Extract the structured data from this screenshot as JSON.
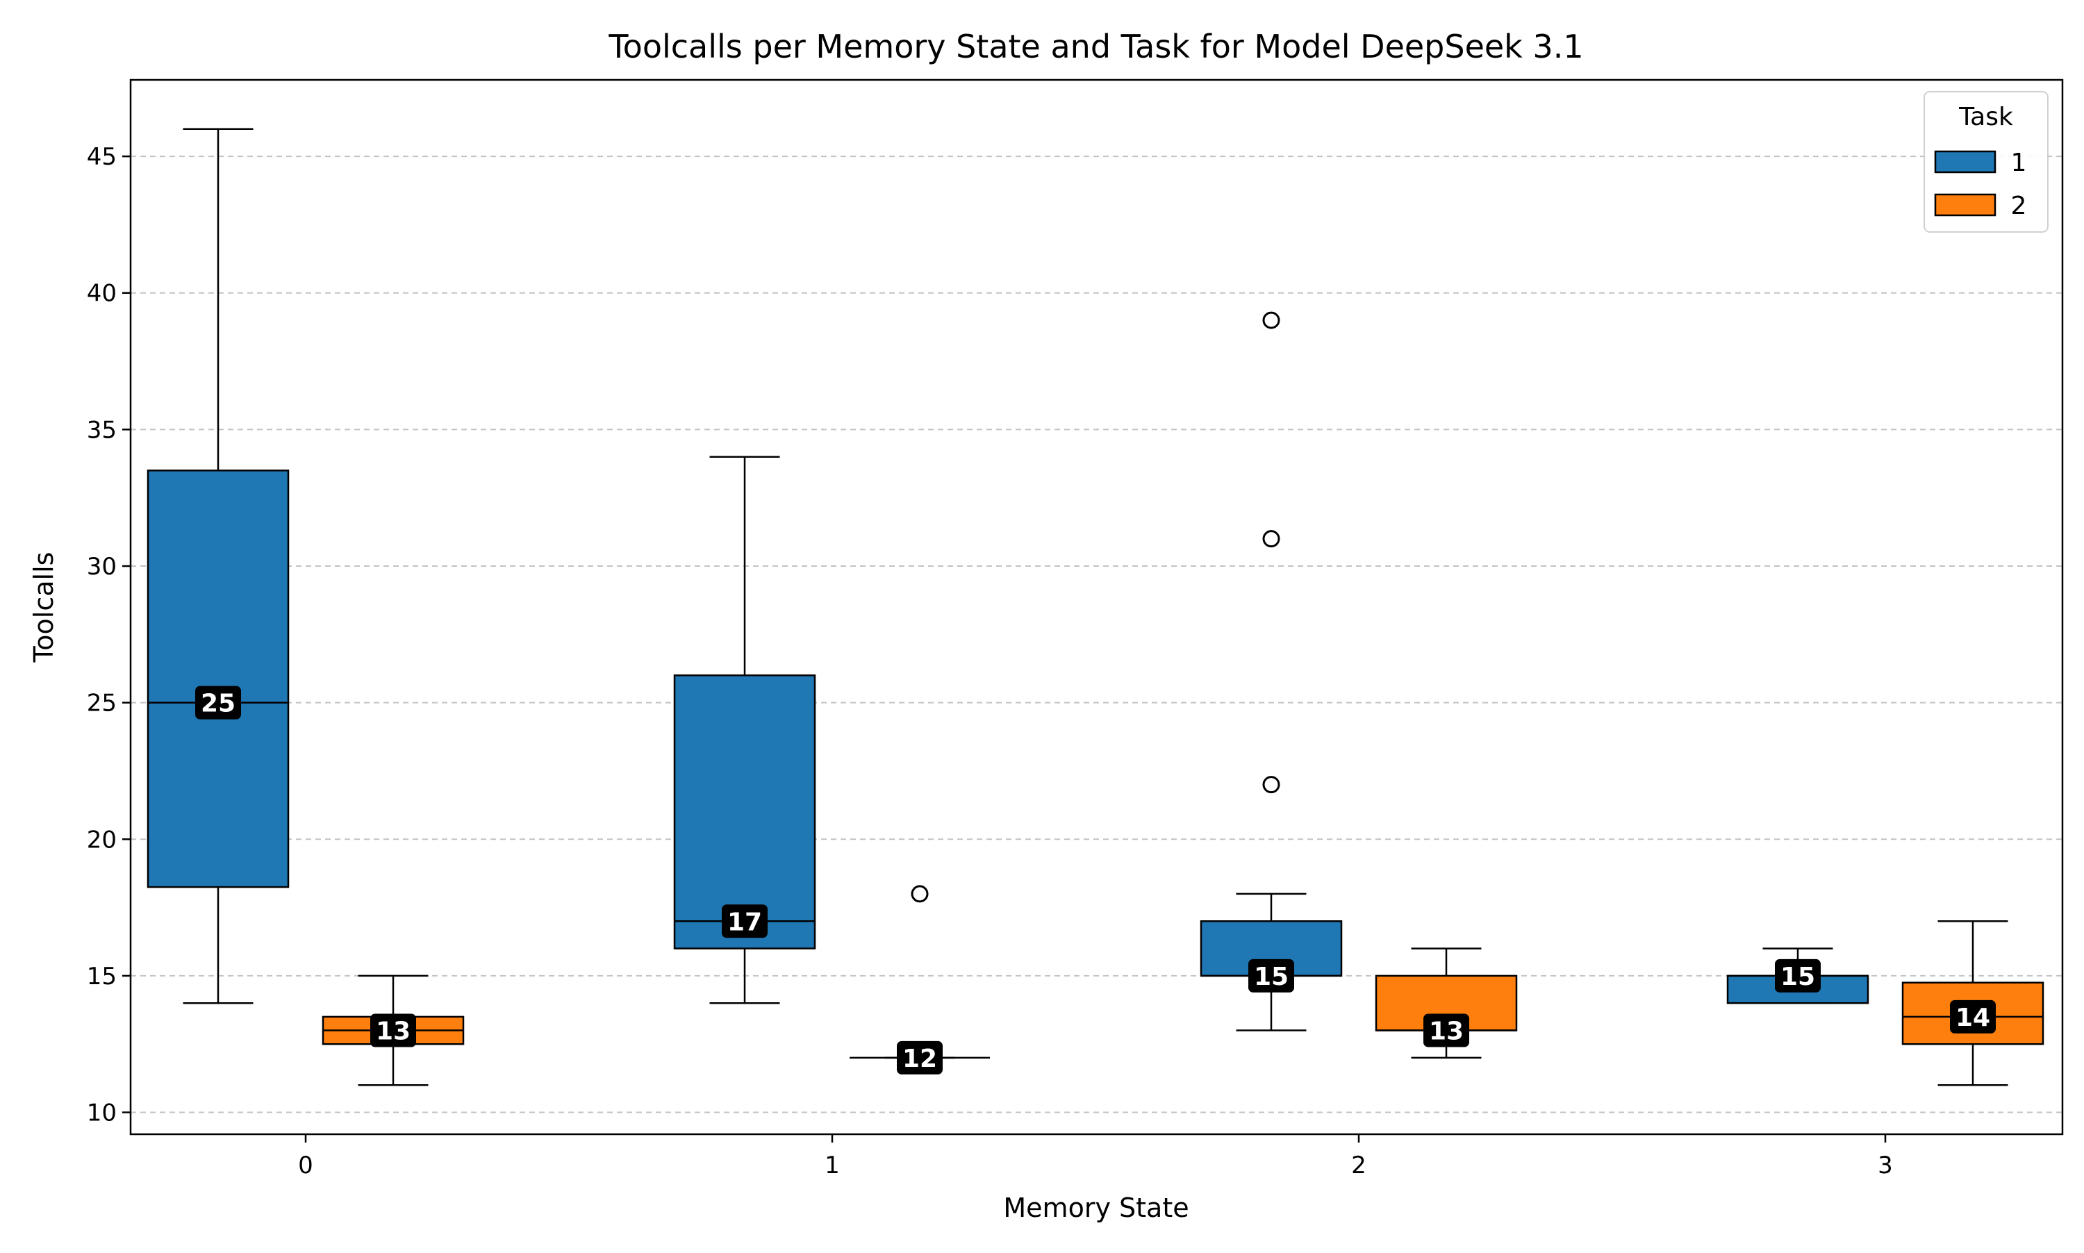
{
  "chart_data": {
    "type": "box",
    "title": "Toolcalls per Memory State and Task for Model DeepSeek 3.1",
    "xlabel": "Memory State",
    "ylabel": "Toolcalls",
    "categories": [
      "0",
      "1",
      "2",
      "3"
    ],
    "ylim": [
      9.2,
      47.8
    ],
    "yticks": [
      10,
      15,
      20,
      25,
      30,
      35,
      40,
      45
    ],
    "grid": "y-dashed",
    "legend": {
      "title": "Task",
      "placement": "top-right"
    },
    "series": [
      {
        "name": "1",
        "color": "#1f77b4",
        "boxes": [
          {
            "category": "0",
            "whisker_low": 14,
            "q1": 18.25,
            "median": 25,
            "q3": 33.5,
            "whisker_high": 46,
            "outliers": [],
            "median_label": "25"
          },
          {
            "category": "1",
            "whisker_low": 14,
            "q1": 16,
            "median": 17,
            "q3": 26,
            "whisker_high": 34,
            "outliers": [],
            "median_label": "17"
          },
          {
            "category": "2",
            "whisker_low": 13,
            "q1": 15,
            "median": 15,
            "q3": 17,
            "whisker_high": 18,
            "outliers": [
              22,
              31,
              39
            ],
            "median_label": "15"
          },
          {
            "category": "3",
            "whisker_low": 14,
            "q1": 14,
            "median": 15,
            "q3": 15,
            "whisker_high": 16,
            "outliers": [],
            "median_label": "15"
          }
        ]
      },
      {
        "name": "2",
        "color": "#ff7f0e",
        "boxes": [
          {
            "category": "0",
            "whisker_low": 11,
            "q1": 12.5,
            "median": 13,
            "q3": 13.5,
            "whisker_high": 15,
            "outliers": [],
            "median_label": "13"
          },
          {
            "category": "1",
            "whisker_low": 12,
            "q1": 12,
            "median": 12,
            "q3": 12,
            "whisker_high": 12,
            "outliers": [
              18
            ],
            "median_label": "12"
          },
          {
            "category": "2",
            "whisker_low": 12,
            "q1": 13,
            "median": 13,
            "q3": 15,
            "whisker_high": 16,
            "outliers": [],
            "median_label": "13"
          },
          {
            "category": "3",
            "whisker_low": 11,
            "q1": 12.5,
            "median": 13.5,
            "q3": 14.75,
            "whisker_high": 17,
            "outliers": [],
            "median_label": "14"
          }
        ]
      }
    ]
  }
}
